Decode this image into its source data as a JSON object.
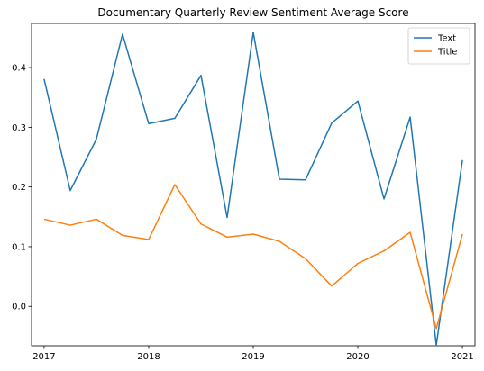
{
  "chart_data": {
    "type": "line",
    "title": "Documentary Quarterly Review Sentiment Average Score",
    "xlabel": "",
    "ylabel": "",
    "x": [
      2017.0,
      2017.25,
      2017.5,
      2017.75,
      2018.0,
      2018.25,
      2018.5,
      2018.75,
      2019.0,
      2019.25,
      2019.5,
      2019.75,
      2020.0,
      2020.25,
      2020.5,
      2020.75,
      2021.0
    ],
    "xticks": [
      2017,
      2018,
      2019,
      2020,
      2021
    ],
    "xtick_labels": [
      "2017",
      "2018",
      "2019",
      "2020",
      "2021"
    ],
    "yticks": [
      0.0,
      0.1,
      0.2,
      0.3,
      0.4
    ],
    "ytick_labels": [
      "0.0",
      "0.1",
      "0.2",
      "0.3",
      "0.4"
    ],
    "xlim": [
      2016.88,
      2021.12
    ],
    "ylim": [
      -0.066,
      0.474
    ],
    "grid": false,
    "legend_position": "top-right",
    "series": [
      {
        "name": "Text",
        "color": "#1f77b4",
        "values": [
          0.381,
          0.194,
          0.28,
          0.456,
          0.306,
          0.315,
          0.387,
          0.149,
          0.459,
          0.213,
          0.212,
          0.307,
          0.344,
          0.18,
          0.317,
          -0.065,
          0.245
        ]
      },
      {
        "name": "Title",
        "color": "#ff7f0e",
        "values": [
          0.146,
          0.136,
          0.146,
          0.119,
          0.112,
          0.204,
          0.138,
          0.116,
          0.121,
          0.109,
          0.08,
          0.034,
          0.072,
          0.093,
          0.124,
          -0.037,
          0.121
        ]
      }
    ]
  }
}
